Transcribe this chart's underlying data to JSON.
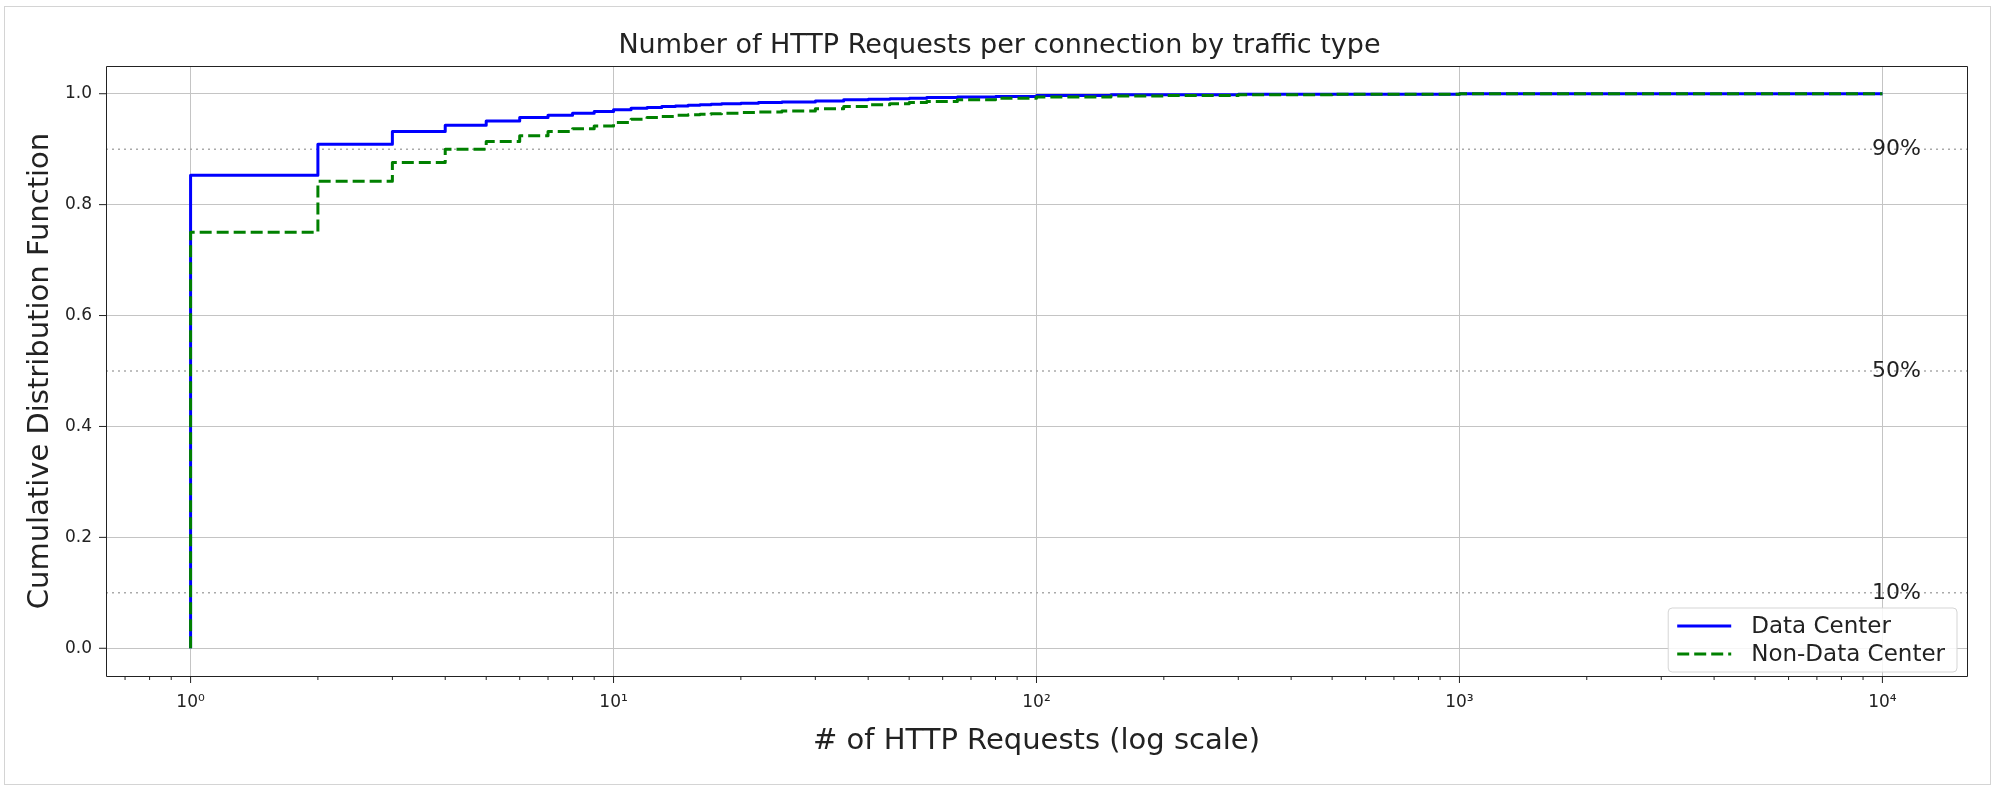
{
  "chart_data": {
    "type": "step",
    "title": "Number of HTTP Requests per connection by traffic type",
    "xlabel": "# of HTTP Requests (log scale)",
    "ylabel": "Cumulative Distribution Function",
    "x": [
      1,
      1,
      2,
      3,
      4,
      5,
      6,
      7,
      8,
      9,
      10,
      11,
      12,
      13,
      14,
      15,
      16,
      17,
      18,
      20,
      22,
      25,
      30,
      35,
      40,
      45,
      50,
      55,
      65,
      80,
      100,
      150,
      200,
      300,
      500,
      1000,
      10000
    ],
    "series": [
      {
        "name": "Data Center",
        "color": "#0000ff",
        "line_style": "solid",
        "values": [
          0,
          0.853,
          0.909,
          0.932,
          0.943,
          0.951,
          0.957,
          0.961,
          0.965,
          0.968,
          0.971,
          0.974,
          0.975,
          0.977,
          0.978,
          0.979,
          0.98,
          0.981,
          0.982,
          0.983,
          0.984,
          0.985,
          0.987,
          0.989,
          0.99,
          0.991,
          0.992,
          0.993,
          0.994,
          0.995,
          0.997,
          0.998,
          0.998,
          0.999,
          0.999,
          1,
          1
        ]
      },
      {
        "name": "Non-Data Center",
        "color": "#008000",
        "line_style": "dashed",
        "values": [
          0,
          0.75,
          0.842,
          0.876,
          0.9,
          0.914,
          0.924,
          0.932,
          0.937,
          0.942,
          0.948,
          0.954,
          0.957,
          0.959,
          0.961,
          0.962,
          0.963,
          0.964,
          0.965,
          0.966,
          0.967,
          0.969,
          0.973,
          0.977,
          0.98,
          0.982,
          0.984,
          0.986,
          0.989,
          0.992,
          0.994,
          0.996,
          0.997,
          0.998,
          0.999,
          1,
          1
        ]
      }
    ],
    "log": "x",
    "xlim": [
      0.631,
      15849
    ],
    "xticks": [
      {
        "value": 0.7,
        "label": null
      },
      {
        "value": 0.8,
        "label": null
      },
      {
        "value": 0.9,
        "label": null
      },
      {
        "value": 1,
        "label": "10⁰"
      },
      {
        "value": 2,
        "label": null
      },
      {
        "value": 3,
        "label": null
      },
      {
        "value": 4,
        "label": null
      },
      {
        "value": 5,
        "label": null
      },
      {
        "value": 6,
        "label": null
      },
      {
        "value": 7,
        "label": null
      },
      {
        "value": 8,
        "label": null
      },
      {
        "value": 9,
        "label": null
      },
      {
        "value": 10,
        "label": "10¹"
      },
      {
        "value": 20,
        "label": null
      },
      {
        "value": 30,
        "label": null
      },
      {
        "value": 40,
        "label": null
      },
      {
        "value": 50,
        "label": null
      },
      {
        "value": 60,
        "label": null
      },
      {
        "value": 70,
        "label": null
      },
      {
        "value": 80,
        "label": null
      },
      {
        "value": 90,
        "label": null
      },
      {
        "value": 100,
        "label": "10²"
      },
      {
        "value": 200,
        "label": null
      },
      {
        "value": 300,
        "label": null
      },
      {
        "value": 400,
        "label": null
      },
      {
        "value": 500,
        "label": null
      },
      {
        "value": 600,
        "label": null
      },
      {
        "value": 700,
        "label": null
      },
      {
        "value": 800,
        "label": null
      },
      {
        "value": 900,
        "label": null
      },
      {
        "value": 1000,
        "label": "10³"
      },
      {
        "value": 2000,
        "label": null
      },
      {
        "value": 3000,
        "label": null
      },
      {
        "value": 4000,
        "label": null
      },
      {
        "value": 5000,
        "label": null
      },
      {
        "value": 6000,
        "label": null
      },
      {
        "value": 7000,
        "label": null
      },
      {
        "value": 8000,
        "label": null
      },
      {
        "value": 9000,
        "label": null
      },
      {
        "value": 10000,
        "label": "10⁴"
      }
    ],
    "ylim": [
      -0.05,
      1.05
    ],
    "yticks": [
      {
        "value": 0,
        "label": "0.0"
      },
      0.2,
      0.4,
      0.6,
      0.8,
      {
        "value": 1,
        "label": "1.0"
      }
    ],
    "grid": true,
    "legend": "bottom right",
    "marker": "none",
    "ref_lines": [
      {
        "axis": "y",
        "value": 0.9,
        "label": "90%",
        "color": "#aaaaaa",
        "line_style": "dotted"
      },
      {
        "axis": "y",
        "value": 0.5,
        "label": "50%",
        "color": "#aaaaaa",
        "line_style": "dotted"
      },
      {
        "axis": "y",
        "value": 0.1,
        "label": "10%",
        "color": "#aaaaaa",
        "line_style": "dotted"
      }
    ]
  }
}
